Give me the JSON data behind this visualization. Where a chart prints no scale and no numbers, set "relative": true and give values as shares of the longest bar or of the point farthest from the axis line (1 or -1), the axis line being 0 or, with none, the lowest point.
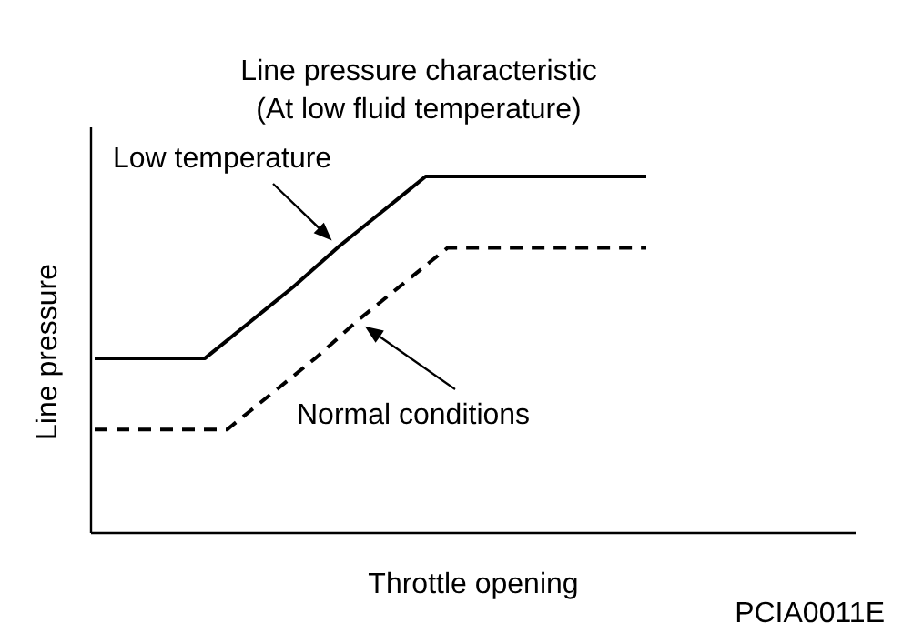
{
  "chart_data": {
    "type": "line",
    "relative": true,
    "title": "Line pressure characteristic",
    "subtitle": "(At low fluid temperature)",
    "xlabel": "Throttle opening",
    "ylabel": "Line pressure",
    "annotations": [
      "PCIA0011E"
    ],
    "marker": "none",
    "categories": [
      null,
      null,
      null,
      null,
      null,
      null,
      null,
      null,
      null,
      null,
      null,
      null,
      null,
      null,
      null,
      null,
      null,
      null,
      null,
      null,
      null,
      null,
      null,
      null,
      null,
      null,
      null,
      null,
      null,
      null,
      null,
      null,
      null,
      null,
      null
    ],
    "series": [
      {
        "name": "Low temperature",
        "color": "#000000",
        "line_style": "solid",
        "values": [
          0.49,
          0.49,
          0.49,
          0.49,
          0.49,
          0.49,
          0.54,
          0.59,
          0.64,
          0.69,
          0.745,
          0.8,
          0.85,
          0.9,
          0.95,
          1,
          1,
          1,
          1,
          1,
          1,
          1,
          1,
          1,
          1,
          1,
          null,
          null,
          null,
          null,
          null,
          null,
          null,
          null,
          null
        ]
      },
      {
        "name": "Normal conditions",
        "color": "#000000",
        "line_style": "dashed",
        "values": [
          0.29,
          0.29,
          0.29,
          0.29,
          0.29,
          0.29,
          0.29,
          0.34,
          0.39,
          0.44,
          0.49,
          0.545,
          0.6,
          0.65,
          0.7,
          0.75,
          0.8,
          0.8,
          0.8,
          0.8,
          0.8,
          0.8,
          0.8,
          0.8,
          0.8,
          0.8,
          null,
          null,
          null,
          null,
          null,
          null,
          null,
          null,
          null
        ]
      }
    ]
  }
}
